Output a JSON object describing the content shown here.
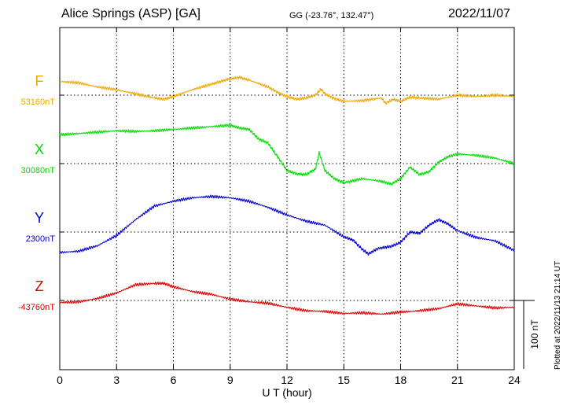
{
  "header": {
    "station": "Alice Springs (ASP)  [GA]",
    "coords": "GG (-23.76°, 132.47°)",
    "date": "2022/11/07",
    "plotted": "Plotted at 2022/11/13 21:14 UT"
  },
  "colors": {
    "F": "#f0a800",
    "X": "#00dd00",
    "Y": "#0000cc",
    "Z": "#dd0000"
  },
  "chart_data": {
    "type": "line",
    "xlabel": "U T (hour)",
    "xlim": [
      0,
      24
    ],
    "xticks": [
      "0",
      "3",
      "6",
      "9",
      "12",
      "15",
      "18",
      "21",
      "24"
    ],
    "scale_bar_label": "100 nT",
    "scale_bar_nT": 100,
    "series": [
      {
        "name": "F",
        "baseline_label": "53160nT",
        "baseline_nT": 53160,
        "x": [
          0,
          1,
          2,
          3,
          4,
          5,
          5.5,
          6,
          7,
          8,
          8.5,
          9,
          9.5,
          10,
          11,
          11.5,
          12,
          12.5,
          13,
          13.5,
          13.8,
          14,
          14.5,
          15,
          16,
          17,
          17.2,
          17.6,
          18,
          18.5,
          19,
          20,
          21,
          22,
          23,
          24
        ],
        "values": [
          53180,
          53178,
          53172,
          53168,
          53162,
          53156,
          53154,
          53158,
          53168,
          53176,
          53180,
          53184,
          53186,
          53182,
          53172,
          53164,
          53158,
          53154,
          53156,
          53160,
          53169,
          53162,
          53155,
          53151,
          53152,
          53156,
          53148,
          53154,
          53151,
          53157,
          53156,
          53154,
          53160,
          53158,
          53160,
          53158
        ]
      },
      {
        "name": "X",
        "baseline_label": "30080nT",
        "baseline_nT": 30080,
        "x": [
          0,
          1,
          2,
          3,
          4,
          5,
          6,
          7,
          8,
          9,
          9.5,
          10,
          10.5,
          11,
          11.5,
          12,
          12.5,
          13,
          13.5,
          13.7,
          14,
          14.5,
          15,
          16,
          17,
          17.5,
          18,
          18.5,
          19,
          19.5,
          20,
          20.5,
          21,
          22,
          23,
          24
        ],
        "values": [
          30122,
          30124,
          30126,
          30128,
          30127,
          30128,
          30130,
          30132,
          30134,
          30136,
          30132,
          30130,
          30116,
          30110,
          30090,
          30070,
          30065,
          30064,
          30072,
          30096,
          30070,
          30058,
          30052,
          30058,
          30054,
          30050,
          30058,
          30075,
          30064,
          30068,
          30082,
          30090,
          30094,
          30092,
          30088,
          30080
        ]
      },
      {
        "name": "Y",
        "baseline_label": "2300nT",
        "baseline_nT": 2300,
        "x": [
          0,
          1,
          2,
          3,
          4,
          5,
          6,
          7,
          8,
          9,
          10,
          11,
          12,
          13,
          14,
          15,
          15.5,
          16,
          16.3,
          16.8,
          17.5,
          18,
          18.5,
          19,
          19.5,
          20,
          20.5,
          21,
          22,
          23,
          24
        ],
        "values": [
          2270,
          2272,
          2280,
          2295,
          2318,
          2338,
          2345,
          2350,
          2352,
          2350,
          2345,
          2336,
          2325,
          2316,
          2310,
          2293,
          2288,
          2274,
          2268,
          2276,
          2279,
          2285,
          2300,
          2298,
          2310,
          2318,
          2312,
          2302,
          2292,
          2287,
          2273
        ]
      },
      {
        "name": "Z",
        "baseline_label": "-43760nT",
        "baseline_nT": -43760,
        "x": [
          0,
          1,
          2,
          3,
          4,
          5,
          5.5,
          6,
          7,
          8,
          9,
          10,
          11,
          12,
          13,
          14,
          15,
          16,
          17,
          18,
          19,
          20,
          21,
          22,
          23,
          24
        ],
        "values": [
          -43763,
          -43762,
          -43757,
          -43749,
          -43737,
          -43735,
          -43735,
          -43740,
          -43747,
          -43751,
          -43758,
          -43762,
          -43764,
          -43770,
          -43775,
          -43776,
          -43779,
          -43778,
          -43780,
          -43777,
          -43775,
          -43772,
          -43765,
          -43768,
          -43771,
          -43770
        ]
      }
    ]
  }
}
